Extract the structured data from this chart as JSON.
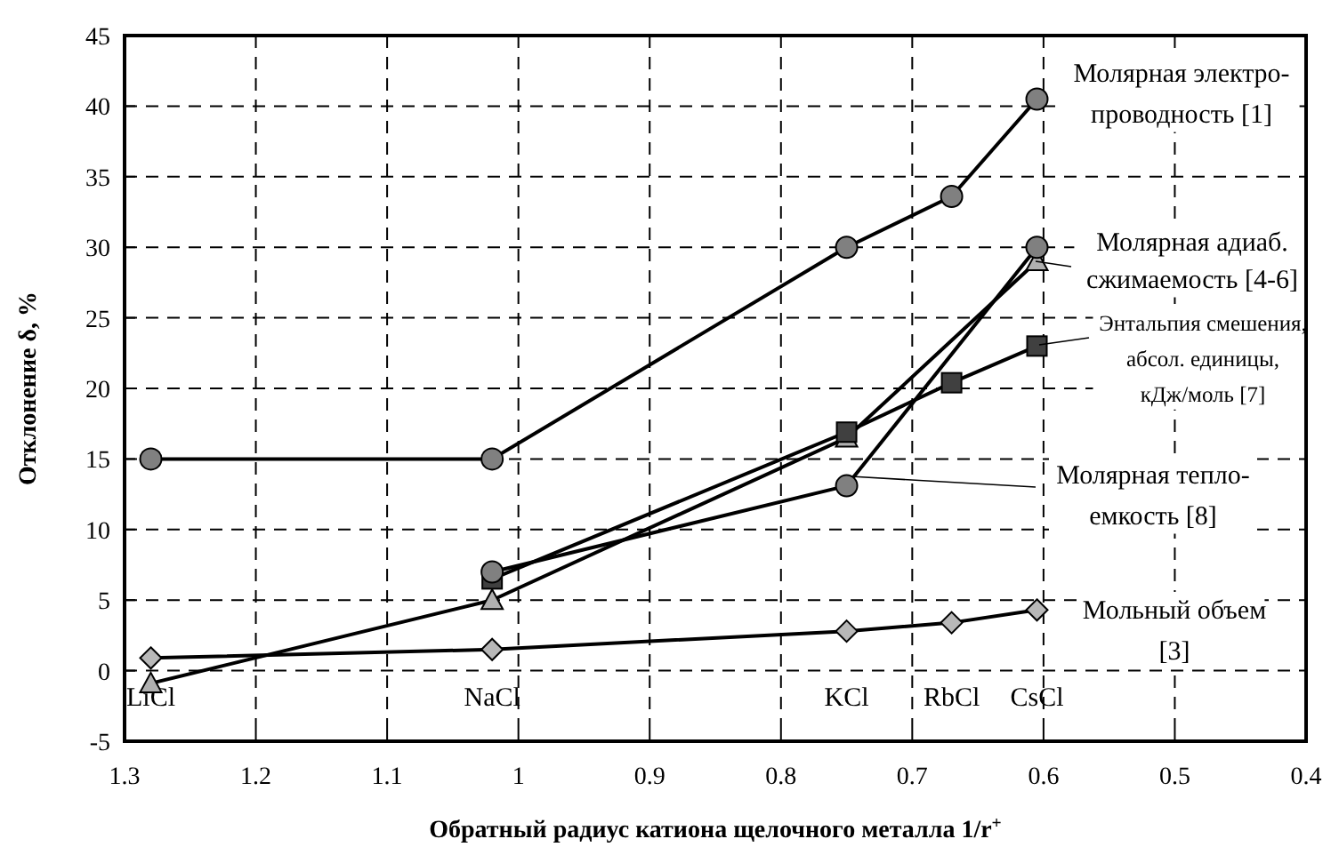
{
  "chart_data": {
    "type": "line",
    "xlabel": "Обратный радиус катиона щелочного металла 1/r$^{+}$",
    "ylabel": "Отклонение δ, %",
    "xlim": [
      1.3,
      0.4
    ],
    "xticks": [
      1.3,
      1.2,
      1.1,
      1,
      0.9,
      0.8,
      0.7,
      0.6,
      0.5,
      0.4
    ],
    "ylim": [
      -5,
      45
    ],
    "yticks": [
      -5,
      0,
      5,
      10,
      15,
      20,
      25,
      30,
      35,
      40,
      45
    ],
    "grid": true,
    "line_style": "solid",
    "series": [
      {
        "name": "Молярная электро-\nпроводность [1]",
        "color": "#808080",
        "marker": "circle",
        "x": [
          1.28,
          1.02,
          0.75,
          0.67,
          0.605
        ],
        "values": [
          15,
          15,
          30,
          33.6,
          40.5
        ]
      },
      {
        "name": "Молярная адиаб.\nсжимаемость [4-6]",
        "color": "#b0b0b0",
        "marker": "triangle",
        "x": [
          1.28,
          1.02,
          0.75,
          0.605
        ],
        "values": [
          -0.9,
          5,
          16.5,
          29
        ]
      },
      {
        "name": "Энтальпия смешения,\nабсол. единицы,\nкДж/моль [7]",
        "color": "#404040",
        "marker": "square",
        "x": [
          1.02,
          0.75,
          0.67,
          0.605
        ],
        "values": [
          6.5,
          16.9,
          20.4,
          23
        ]
      },
      {
        "name": "Молярная тепло-\nемкость [8]",
        "color": "#808080",
        "marker": "circle",
        "x": [
          1.02,
          0.75,
          0.605
        ],
        "values": [
          7,
          13.1,
          30
        ]
      },
      {
        "name": "Мольный объем\n[3]",
        "color": "#b8b8b8",
        "marker": "diamond",
        "x": [
          1.28,
          1.02,
          0.75,
          0.67,
          0.605
        ],
        "values": [
          0.9,
          1.5,
          2.8,
          3.4,
          4.3
        ]
      }
    ],
    "annotations": [
      "LiCl",
      "NaCl",
      "KCl",
      "RbCl",
      "CsCl"
    ]
  }
}
